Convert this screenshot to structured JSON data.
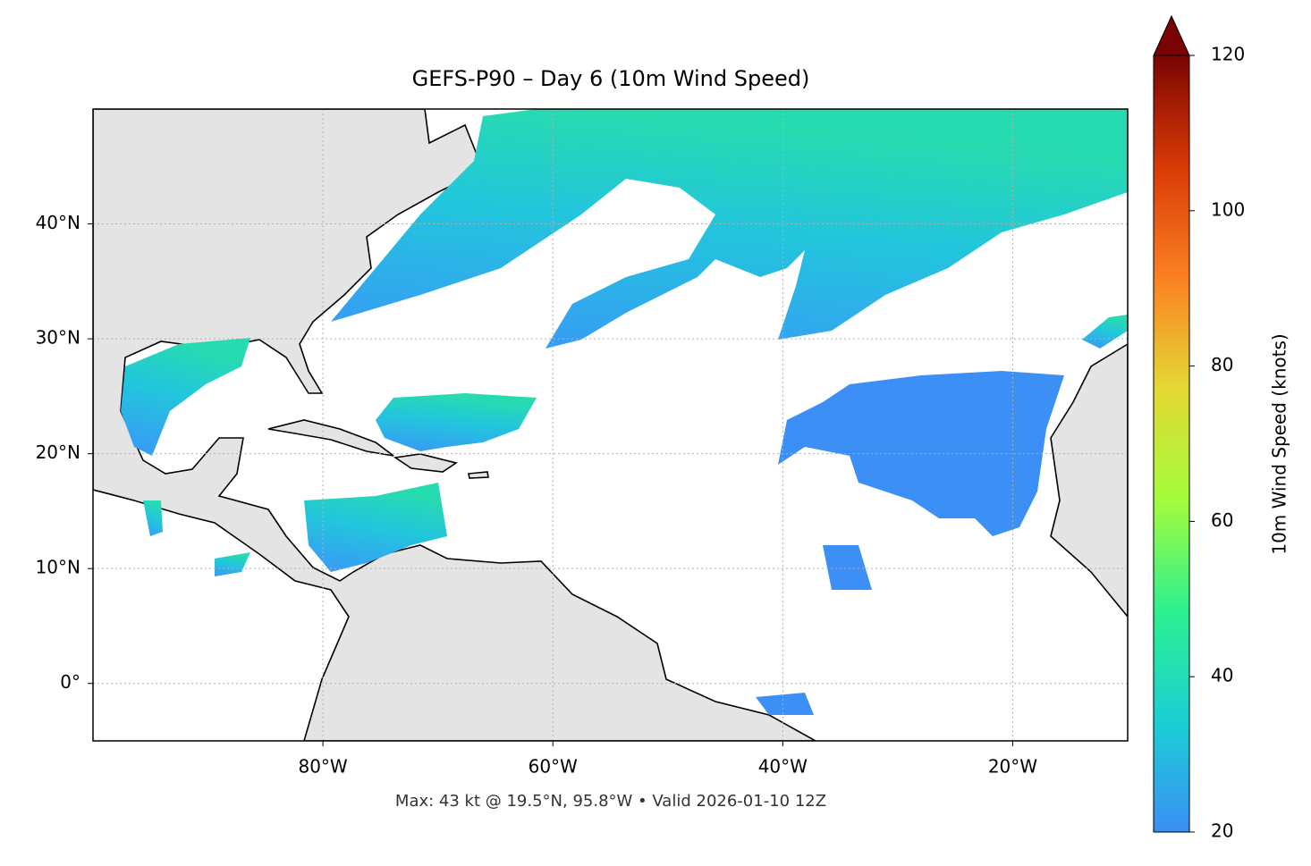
{
  "chart_data": {
    "type": "map",
    "title": "GEFS-P90 – Day 6 (10m Wind Speed)",
    "footer": "Max: 43 kt @ 19.5°N, 95.8°W • Valid 2026-01-10 12Z",
    "xlim": [
      -100,
      -10
    ],
    "ylim": [
      -5,
      50
    ],
    "xticks": [
      {
        "value": -80,
        "label": "80°W"
      },
      {
        "value": -60,
        "label": "60°W"
      },
      {
        "value": -40,
        "label": "40°W"
      },
      {
        "value": -20,
        "label": "20°W"
      }
    ],
    "yticks": [
      {
        "value": 0,
        "label": "0°"
      },
      {
        "value": 10,
        "label": "10°N"
      },
      {
        "value": 20,
        "label": "20°N"
      },
      {
        "value": 30,
        "label": "30°N"
      },
      {
        "value": 40,
        "label": "40°N"
      }
    ],
    "grid": true,
    "colorbar": {
      "label": "10m Wind Speed (knots)",
      "lim": [
        20,
        120
      ],
      "ticks": [
        20,
        40,
        60,
        80,
        100,
        120
      ],
      "colors": [
        "#3b8ff5",
        "#1bcfd4",
        "#2ef08f",
        "#a4fc3c",
        "#e4d834",
        "#fb8022",
        "#d93a08",
        "#7a0403"
      ]
    }
  }
}
